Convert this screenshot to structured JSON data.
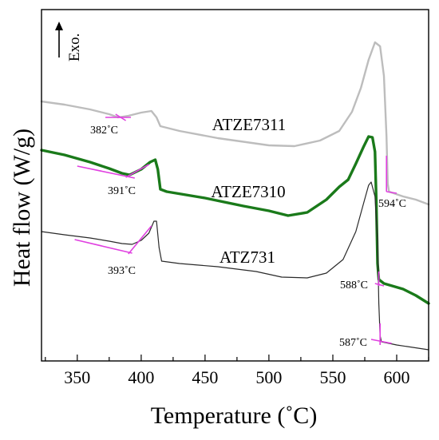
{
  "chart_data": {
    "type": "line",
    "xlabel": "Temperature (˚C)",
    "ylabel": "Heat flow (W/g)",
    "xlim": [
      322,
      625
    ],
    "x_ticks": [
      350,
      400,
      450,
      500,
      550,
      600
    ],
    "y_ticks_shown": false,
    "grid": false,
    "legend": "none",
    "exo_indicator": "Exo.",
    "series": [
      {
        "name": "ATZE7311",
        "color": "#bdbdbd",
        "points": [
          [
            322,
            127
          ],
          [
            340,
            131
          ],
          [
            360,
            137
          ],
          [
            375,
            143
          ],
          [
            382,
            147
          ],
          [
            390,
            145
          ],
          [
            400,
            141
          ],
          [
            408,
            139
          ],
          [
            412,
            147
          ],
          [
            415,
            158
          ],
          [
            430,
            164
          ],
          [
            460,
            173
          ],
          [
            500,
            182
          ],
          [
            520,
            183
          ],
          [
            540,
            176
          ],
          [
            555,
            164
          ],
          [
            565,
            140
          ],
          [
            572,
            110
          ],
          [
            578,
            75
          ],
          [
            583,
            53
          ],
          [
            587,
            58
          ],
          [
            590,
            95
          ],
          [
            592,
            170
          ],
          [
            593,
            230
          ],
          [
            594,
            240
          ],
          [
            605,
            246
          ],
          [
            615,
            250
          ],
          [
            625,
            256
          ]
        ]
      },
      {
        "name": "ATZE7310",
        "color": "#1a7a1a",
        "points": [
          [
            322,
            188
          ],
          [
            340,
            194
          ],
          [
            360,
            203
          ],
          [
            375,
            211
          ],
          [
            385,
            217
          ],
          [
            391,
            219
          ],
          [
            400,
            212
          ],
          [
            407,
            203
          ],
          [
            411,
            200
          ],
          [
            413,
            212
          ],
          [
            415,
            237
          ],
          [
            420,
            240
          ],
          [
            450,
            248
          ],
          [
            480,
            258
          ],
          [
            500,
            264
          ],
          [
            515,
            270
          ],
          [
            530,
            266
          ],
          [
            545,
            250
          ],
          [
            555,
            234
          ],
          [
            562,
            225
          ],
          [
            568,
            205
          ],
          [
            574,
            184
          ],
          [
            578,
            171
          ],
          [
            581,
            172
          ],
          [
            583,
            190
          ],
          [
            584,
            250
          ],
          [
            585,
            330
          ],
          [
            586,
            350
          ],
          [
            590,
            355
          ],
          [
            605,
            362
          ],
          [
            615,
            370
          ],
          [
            625,
            380
          ]
        ]
      },
      {
        "name": "ATZ731",
        "color": "#2a2a2a",
        "points": [
          [
            322,
            290
          ],
          [
            340,
            294
          ],
          [
            360,
            298
          ],
          [
            375,
            302
          ],
          [
            385,
            305
          ],
          [
            393,
            306
          ],
          [
            400,
            301
          ],
          [
            406,
            292
          ],
          [
            410,
            277
          ],
          [
            412,
            277
          ],
          [
            414,
            310
          ],
          [
            416,
            327
          ],
          [
            430,
            330
          ],
          [
            460,
            334
          ],
          [
            490,
            340
          ],
          [
            510,
            347
          ],
          [
            530,
            348
          ],
          [
            545,
            342
          ],
          [
            558,
            325
          ],
          [
            568,
            290
          ],
          [
            574,
            255
          ],
          [
            578,
            232
          ],
          [
            580,
            228
          ],
          [
            583,
            246
          ],
          [
            585,
            300
          ],
          [
            586,
            380
          ],
          [
            587,
            420
          ],
          [
            588,
            428
          ],
          [
            600,
            432
          ],
          [
            625,
            438
          ]
        ]
      }
    ],
    "annotations": [
      {
        "text": "382˚C",
        "x": 382
      },
      {
        "text": "391˚C",
        "x": 391
      },
      {
        "text": "393˚C",
        "x": 393
      },
      {
        "text": "594˚C",
        "x": 594
      },
      {
        "text": "588˚C",
        "x": 588
      },
      {
        "text": "587˚C",
        "x": 587
      }
    ],
    "annotation_color": "#e040e0"
  }
}
